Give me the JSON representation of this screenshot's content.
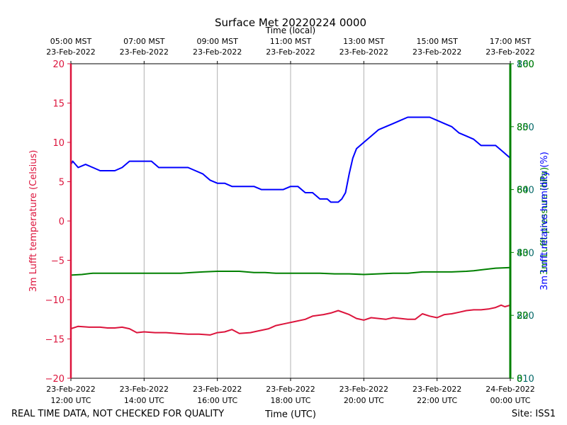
{
  "chart_data": {
    "type": "line",
    "title": "Surface Met 20220224 0000",
    "xlabel_bottom": "Time (UTC)",
    "xlabel_top": "Time (local)",
    "ylabel_left": "3m Lufft temperature (Celsius)",
    "ylabel_right_overlap": [
      "3m Lufft pressure (hPa)",
      "3m Lufft relative humidity (%)"
    ],
    "x_hours_range": [
      12,
      24
    ],
    "bottom_ticks": [
      {
        "hour": 12,
        "line1": "23-Feb-2022",
        "line2": "12:00 UTC"
      },
      {
        "hour": 14,
        "line1": "23-Feb-2022",
        "line2": "14:00 UTC"
      },
      {
        "hour": 16,
        "line1": "23-Feb-2022",
        "line2": "16:00 UTC"
      },
      {
        "hour": 18,
        "line1": "23-Feb-2022",
        "line2": "18:00 UTC"
      },
      {
        "hour": 20,
        "line1": "23-Feb-2022",
        "line2": "20:00 UTC"
      },
      {
        "hour": 22,
        "line1": "23-Feb-2022",
        "line2": "22:00 UTC"
      },
      {
        "hour": 24,
        "line1": "24-Feb-2022",
        "line2": "00:00 UTC"
      }
    ],
    "top_ticks": [
      {
        "hour": 12,
        "line1": "05:00 MST",
        "line2": "23-Feb-2022"
      },
      {
        "hour": 14,
        "line1": "07:00 MST",
        "line2": "23-Feb-2022"
      },
      {
        "hour": 16,
        "line1": "09:00 MST",
        "line2": "23-Feb-2022"
      },
      {
        "hour": 18,
        "line1": "11:00 MST",
        "line2": "23-Feb-2022"
      },
      {
        "hour": 20,
        "line1": "13:00 MST",
        "line2": "23-Feb-2022"
      },
      {
        "hour": 22,
        "line1": "15:00 MST",
        "line2": "23-Feb-2022"
      },
      {
        "hour": 24,
        "line1": "17:00 MST",
        "line2": "23-Feb-2022"
      }
    ],
    "ylim_left": [
      -20,
      20
    ],
    "left_ticks": [
      -20,
      -15,
      -10,
      -5,
      0,
      5,
      10,
      15,
      20
    ],
    "right_tick_labels_green": [
      "0",
      "20",
      "40",
      "60",
      "80",
      "100"
    ],
    "right_tick_labels_teal": [
      "810",
      "820",
      "830",
      "840",
      "850",
      "860"
    ],
    "ylim_pressure": [
      810,
      860
    ],
    "ylim_humidity": [
      0,
      100
    ],
    "series": [
      {
        "name": "3m Lufft temperature (Celsius)",
        "axis": "left",
        "color": "#dc143c",
        "points": [
          [
            12.0,
            -13.7
          ],
          [
            12.2,
            -13.4
          ],
          [
            12.5,
            -13.5
          ],
          [
            12.8,
            -13.5
          ],
          [
            13.0,
            -13.6
          ],
          [
            13.2,
            -13.6
          ],
          [
            13.4,
            -13.5
          ],
          [
            13.6,
            -13.7
          ],
          [
            13.8,
            -14.2
          ],
          [
            14.0,
            -14.1
          ],
          [
            14.3,
            -14.2
          ],
          [
            14.6,
            -14.2
          ],
          [
            14.9,
            -14.3
          ],
          [
            15.2,
            -14.4
          ],
          [
            15.5,
            -14.4
          ],
          [
            15.8,
            -14.5
          ],
          [
            16.0,
            -14.2
          ],
          [
            16.2,
            -14.1
          ],
          [
            16.4,
            -13.8
          ],
          [
            16.6,
            -14.3
          ],
          [
            16.9,
            -14.2
          ],
          [
            17.1,
            -14.0
          ],
          [
            17.4,
            -13.7
          ],
          [
            17.6,
            -13.3
          ],
          [
            17.9,
            -13.0
          ],
          [
            18.1,
            -12.8
          ],
          [
            18.4,
            -12.5
          ],
          [
            18.6,
            -12.1
          ],
          [
            18.9,
            -11.9
          ],
          [
            19.1,
            -11.7
          ],
          [
            19.3,
            -11.4
          ],
          [
            19.6,
            -11.9
          ],
          [
            19.8,
            -12.4
          ],
          [
            20.0,
            -12.6
          ],
          [
            20.2,
            -12.3
          ],
          [
            20.4,
            -12.4
          ],
          [
            20.6,
            -12.5
          ],
          [
            20.8,
            -12.3
          ],
          [
            21.0,
            -12.4
          ],
          [
            21.2,
            -12.5
          ],
          [
            21.4,
            -12.5
          ],
          [
            21.6,
            -11.8
          ],
          [
            21.8,
            -12.1
          ],
          [
            22.0,
            -12.3
          ],
          [
            22.2,
            -11.9
          ],
          [
            22.4,
            -11.8
          ],
          [
            22.6,
            -11.6
          ],
          [
            22.8,
            -11.4
          ],
          [
            23.0,
            -11.3
          ],
          [
            23.2,
            -11.3
          ],
          [
            23.4,
            -11.2
          ],
          [
            23.6,
            -11.0
          ],
          [
            23.75,
            -10.7
          ],
          [
            23.85,
            -10.9
          ],
          [
            24.0,
            -10.7
          ]
        ]
      },
      {
        "name": "3m Lufft pressure (hPa)",
        "axis": "pressure",
        "color": "#008000",
        "points": [
          [
            12.0,
            826.4
          ],
          [
            12.3,
            826.5
          ],
          [
            12.6,
            826.7
          ],
          [
            13.0,
            826.7
          ],
          [
            13.5,
            826.7
          ],
          [
            14.0,
            826.7
          ],
          [
            14.5,
            826.7
          ],
          [
            15.0,
            826.7
          ],
          [
            15.3,
            826.8
          ],
          [
            15.6,
            826.9
          ],
          [
            16.0,
            827.0
          ],
          [
            16.3,
            827.0
          ],
          [
            16.6,
            827.0
          ],
          [
            17.0,
            826.8
          ],
          [
            17.3,
            826.8
          ],
          [
            17.6,
            826.7
          ],
          [
            18.0,
            826.7
          ],
          [
            18.4,
            826.7
          ],
          [
            18.8,
            826.7
          ],
          [
            19.2,
            826.6
          ],
          [
            19.6,
            826.6
          ],
          [
            20.0,
            826.5
          ],
          [
            20.4,
            826.6
          ],
          [
            20.8,
            826.7
          ],
          [
            21.2,
            826.7
          ],
          [
            21.6,
            826.9
          ],
          [
            22.0,
            826.9
          ],
          [
            22.4,
            826.9
          ],
          [
            22.8,
            827.0
          ],
          [
            23.0,
            827.1
          ],
          [
            23.3,
            827.3
          ],
          [
            23.6,
            827.5
          ],
          [
            24.0,
            827.6
          ]
        ]
      },
      {
        "name": "3m Lufft relative humidity (%)",
        "axis": "humidity",
        "color": "#0000ff",
        "points": [
          [
            12.0,
            68
          ],
          [
            12.05,
            69
          ],
          [
            12.2,
            67
          ],
          [
            12.4,
            68
          ],
          [
            12.6,
            67
          ],
          [
            12.8,
            66
          ],
          [
            13.0,
            66
          ],
          [
            13.2,
            66
          ],
          [
            13.4,
            67
          ],
          [
            13.6,
            69
          ],
          [
            13.8,
            69
          ],
          [
            14.0,
            69
          ],
          [
            14.2,
            69
          ],
          [
            14.4,
            67
          ],
          [
            14.6,
            67
          ],
          [
            14.8,
            67
          ],
          [
            15.0,
            67
          ],
          [
            15.2,
            67
          ],
          [
            15.4,
            66
          ],
          [
            15.6,
            65
          ],
          [
            15.8,
            63
          ],
          [
            16.0,
            62
          ],
          [
            16.2,
            62
          ],
          [
            16.4,
            61
          ],
          [
            16.6,
            61
          ],
          [
            16.8,
            61
          ],
          [
            17.0,
            61
          ],
          [
            17.2,
            60
          ],
          [
            17.4,
            60
          ],
          [
            17.6,
            60
          ],
          [
            17.8,
            60
          ],
          [
            18.0,
            61
          ],
          [
            18.2,
            61
          ],
          [
            18.4,
            59
          ],
          [
            18.6,
            59
          ],
          [
            18.8,
            57
          ],
          [
            19.0,
            57
          ],
          [
            19.1,
            56
          ],
          [
            19.3,
            56
          ],
          [
            19.4,
            57
          ],
          [
            19.5,
            59
          ],
          [
            19.6,
            65
          ],
          [
            19.7,
            70
          ],
          [
            19.8,
            73
          ],
          [
            20.0,
            75
          ],
          [
            20.2,
            77
          ],
          [
            20.4,
            79
          ],
          [
            20.6,
            80
          ],
          [
            20.8,
            81
          ],
          [
            21.0,
            82
          ],
          [
            21.2,
            83
          ],
          [
            21.4,
            83
          ],
          [
            21.6,
            83
          ],
          [
            21.8,
            83
          ],
          [
            22.0,
            82
          ],
          [
            22.2,
            81
          ],
          [
            22.4,
            80
          ],
          [
            22.6,
            78
          ],
          [
            22.8,
            77
          ],
          [
            23.0,
            76
          ],
          [
            23.2,
            74
          ],
          [
            23.4,
            74
          ],
          [
            23.6,
            74
          ],
          [
            23.8,
            72
          ],
          [
            23.9,
            71
          ],
          [
            24.0,
            70
          ]
        ]
      }
    ]
  },
  "footer": {
    "left_note": "REAL TIME DATA, NOT CHECKED FOR QUALITY",
    "site": "Site: ISS1"
  },
  "colors": {
    "temperature": "#dc143c",
    "pressure": "#008000",
    "pressure_ticks": "#006666",
    "humidity": "#0000ff",
    "grid": "#b0b0b0"
  }
}
